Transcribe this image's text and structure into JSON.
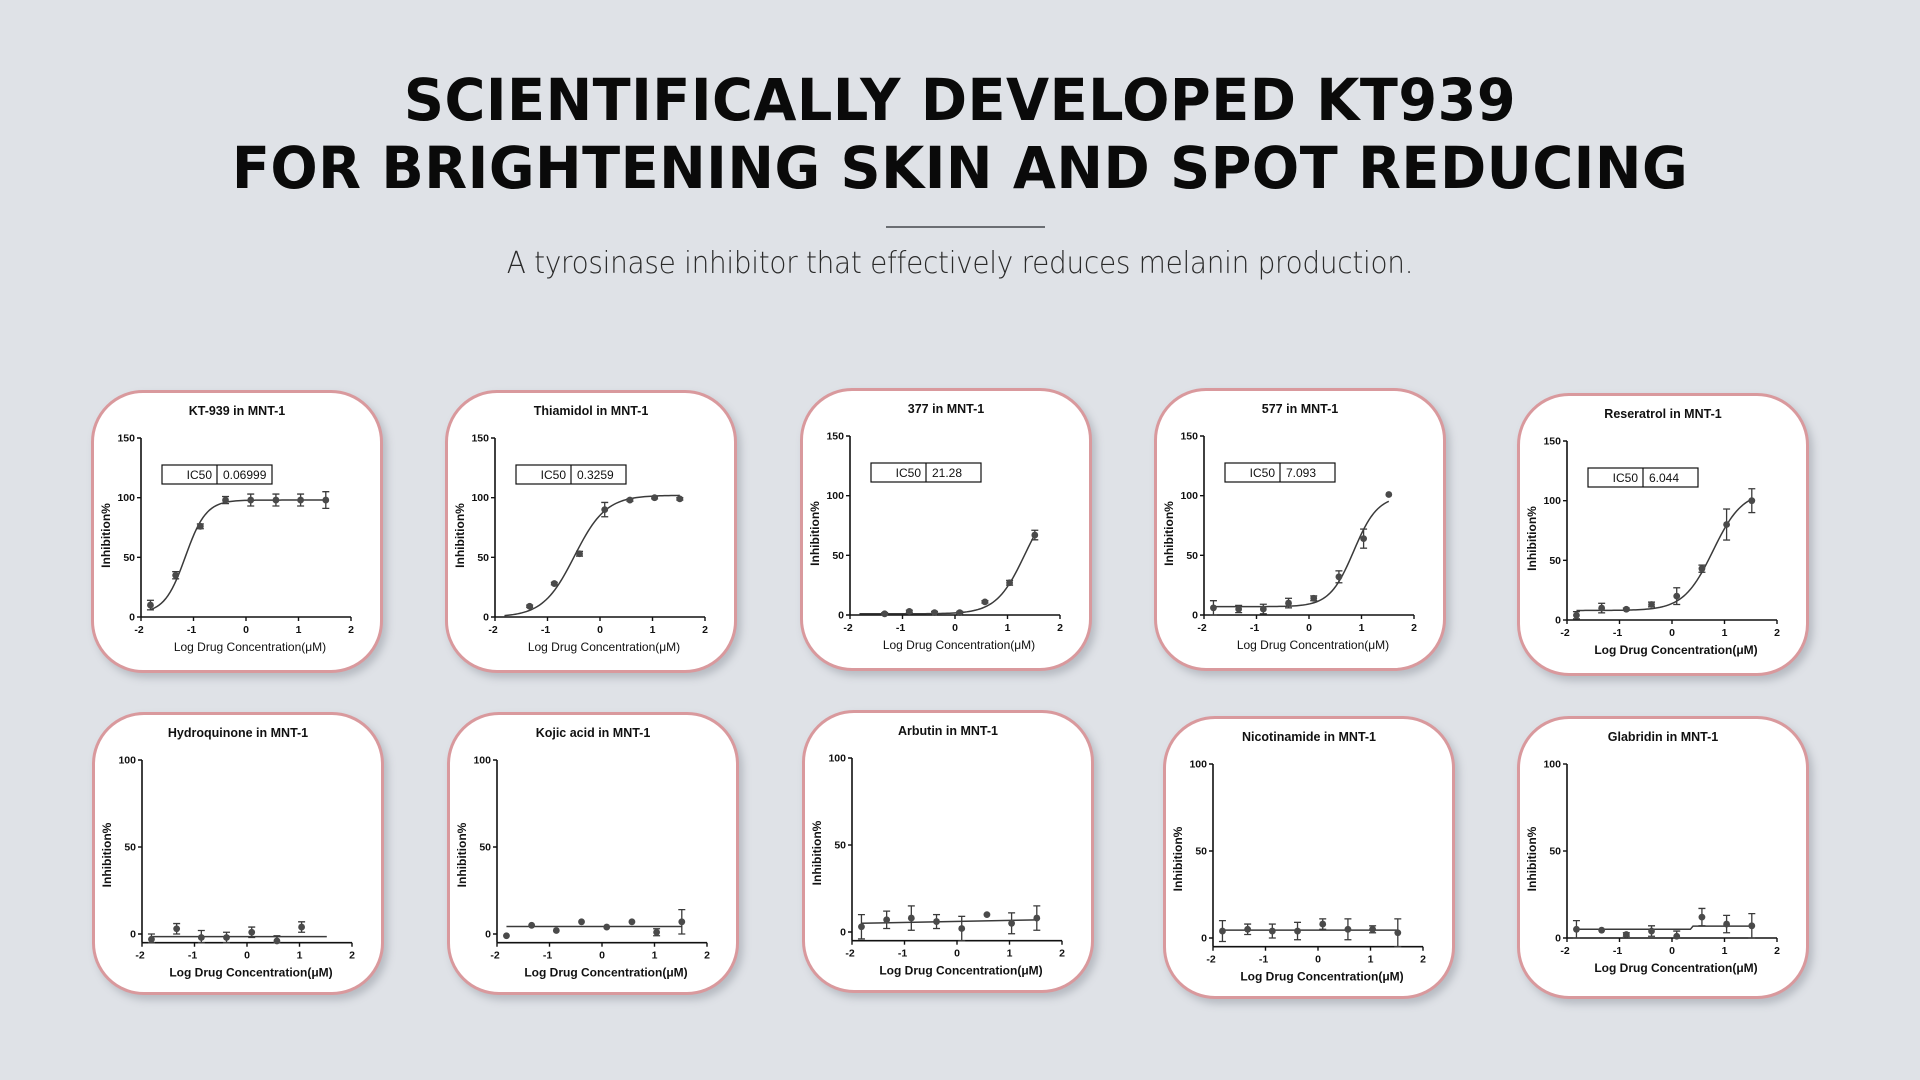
{
  "header": {
    "title_line1": "SCIENTIFICALLY DEVELOPED KT939",
    "title_line2": "FOR BRIGHTENING SKIN AND SPOT REDUCING",
    "subtitle": "A tyrosinase inhibitor that effectively reduces melanin production."
  },
  "colors": {
    "background": "#dfe2e7",
    "card_border": "#d9999d",
    "marker": "#4a4a4a",
    "axis": "#111111"
  },
  "chart_data": [
    {
      "type": "scatter",
      "title": "KT-939 in MNT-1",
      "xlabel": "Log Drug Concentration(μM)",
      "ylabel": "Inhibition%",
      "xlim": [
        -2,
        2
      ],
      "ylim": [
        0,
        150
      ],
      "xticks": [
        "-2",
        "-1",
        "0",
        "1",
        "2"
      ],
      "yticks": [
        "0",
        "50",
        "100",
        "150"
      ],
      "ic50_label": "IC50",
      "ic50_value": "0.06999",
      "x": [
        -1.82,
        -1.34,
        -0.87,
        -0.39,
        0.09,
        0.57,
        1.04,
        1.52
      ],
      "y": [
        10,
        35,
        76,
        98,
        98,
        98,
        98,
        98
      ],
      "err": [
        4,
        3,
        2,
        3,
        5,
        5,
        5,
        7
      ],
      "fit": {
        "bottom": 3,
        "top": 98,
        "logic50": -1.155,
        "hill": 2.2,
        "x_range": [
          -1.82,
          1.52
        ]
      }
    },
    {
      "type": "scatter",
      "title": "Thiamidol in MNT-1",
      "xlabel": "Log Drug Concentration(μM)",
      "ylabel": "Inhibition%",
      "xlim": [
        -2,
        2
      ],
      "ylim": [
        0,
        150
      ],
      "xticks": [
        "-2",
        "-1",
        "0",
        "1",
        "2"
      ],
      "yticks": [
        "0",
        "50",
        "100",
        "150"
      ],
      "ic50_label": "IC50",
      "ic50_value": "0.3259",
      "x": [
        -1.34,
        -0.87,
        -0.39,
        0.09,
        0.57,
        1.04,
        1.52
      ],
      "y": [
        9,
        28,
        53,
        90,
        98,
        100,
        99
      ],
      "err": [
        1,
        1,
        2,
        6,
        1,
        1,
        1
      ],
      "fit": {
        "bottom": 0,
        "top": 102,
        "logic50": -0.487,
        "hill": 1.45,
        "x_range": [
          -1.82,
          1.52
        ]
      }
    },
    {
      "type": "scatter",
      "title": "377 in MNT-1",
      "xlabel": "Log Drug Concentration(μM)",
      "ylabel": "Inhibition%",
      "xlim": [
        -2,
        2
      ],
      "ylim": [
        0,
        150
      ],
      "xticks": [
        "-2",
        "-1",
        "0",
        "1",
        "2"
      ],
      "yticks": [
        "0",
        "50",
        "100",
        "150"
      ],
      "ic50_label": "IC50",
      "ic50_value": "21.28",
      "x": [
        -1.34,
        -0.87,
        -0.39,
        0.09,
        0.57,
        1.04,
        1.52
      ],
      "y": [
        1,
        3,
        2,
        2,
        11,
        27,
        67
      ],
      "err": [
        1,
        1,
        1,
        1,
        1,
        2,
        4
      ],
      "fit": {
        "bottom": 1,
        "top": 100,
        "logic50": 1.328,
        "hill": 1.6,
        "x_range": [
          -1.82,
          1.52
        ]
      }
    },
    {
      "type": "scatter",
      "title": "577 in MNT-1",
      "xlabel": "Log Drug Concentration(μM)",
      "ylabel": "Inhibition%",
      "xlim": [
        -2,
        2
      ],
      "ylim": [
        0,
        150
      ],
      "xticks": [
        "-2",
        "-1",
        "0",
        "1",
        "2"
      ],
      "yticks": [
        "0",
        "50",
        "100",
        "150"
      ],
      "ic50_label": "IC50",
      "ic50_value": "7.093",
      "x": [
        -1.82,
        -1.34,
        -0.87,
        -0.39,
        0.09,
        0.57,
        1.04,
        1.52
      ],
      "y": [
        6,
        5,
        5,
        10,
        14,
        32,
        64,
        101
      ],
      "err": [
        6,
        3,
        4,
        4,
        2,
        5,
        8,
        0
      ],
      "fit": {
        "bottom": 7,
        "top": 100,
        "logic50": 0.851,
        "hill": 1.9,
        "x_range": [
          -1.82,
          1.52
        ]
      }
    },
    {
      "type": "scatter",
      "title": "Reseratrol in MNT-1",
      "xlabel": "Log Drug Concentration(μM)",
      "ylabel": "Inhibition%",
      "xlim": [
        -2,
        2
      ],
      "ylim": [
        0,
        150
      ],
      "xticks": [
        "-2",
        "-1",
        "0",
        "1",
        "2"
      ],
      "yticks": [
        "0",
        "50",
        "100",
        "150"
      ],
      "ic50_label": "IC50",
      "ic50_value": "6.044",
      "x": [
        -1.82,
        -1.34,
        -0.87,
        -0.39,
        0.09,
        0.57,
        1.04,
        1.52
      ],
      "y": [
        4,
        10,
        9,
        13,
        20,
        43,
        80,
        100
      ],
      "err": [
        3,
        4,
        1,
        2,
        7,
        3,
        13,
        10
      ],
      "fit": {
        "bottom": 8,
        "top": 108,
        "logic50": 0.781,
        "hill": 1.55,
        "x_range": [
          -1.82,
          1.52
        ]
      }
    },
    {
      "type": "scatter",
      "title": "Hydroquinone in MNT-1",
      "xlabel": "Log Drug Concentration(μM)",
      "ylabel": "Inhibition%",
      "xlim": [
        -2,
        2
      ],
      "ylim": [
        -5,
        100
      ],
      "xticks": [
        "-2",
        "-1",
        "0",
        "1",
        "2"
      ],
      "yticks": [
        "0",
        "50",
        "100"
      ],
      "x": [
        -1.82,
        -1.34,
        -0.87,
        -0.39,
        0.09,
        0.57,
        1.04
      ],
      "y": [
        -3,
        3,
        -2,
        -2,
        1,
        -4,
        4
      ],
      "err": [
        3,
        3,
        4,
        3,
        3,
        3,
        3
      ],
      "line": [
        [
          -1.82,
          -1.5
        ],
        [
          1.52,
          -1.5
        ]
      ]
    },
    {
      "type": "scatter",
      "title": "Kojic acid in MNT-1",
      "xlabel": "Log Drug Concentration(μM)",
      "ylabel": "Inhibition%",
      "xlim": [
        -2,
        2
      ],
      "ylim": [
        -5,
        100
      ],
      "xticks": [
        "-2",
        "-1",
        "0",
        "1",
        "2"
      ],
      "yticks": [
        "0",
        "50",
        "100"
      ],
      "x": [
        -1.82,
        -1.34,
        -0.87,
        -0.39,
        0.09,
        0.57,
        1.04,
        1.52
      ],
      "y": [
        -1,
        5,
        2,
        7,
        4,
        7,
        1,
        7
      ],
      "err": [
        0,
        0,
        0,
        0,
        0,
        0,
        2,
        7
      ],
      "line": [
        [
          -1.82,
          4.3
        ],
        [
          1.52,
          4.3
        ]
      ]
    },
    {
      "type": "scatter",
      "title": "Arbutin in MNT-1",
      "xlabel": "Log Drug Concentration(μM)",
      "ylabel": "Inhibition%",
      "xlim": [
        -2,
        2
      ],
      "ylim": [
        -5,
        100
      ],
      "xticks": [
        "-2",
        "-1",
        "0",
        "1",
        "2"
      ],
      "yticks": [
        "0",
        "50",
        "100"
      ],
      "x": [
        -1.82,
        -1.34,
        -0.87,
        -0.39,
        0.09,
        0.57,
        1.04,
        1.52
      ],
      "y": [
        3,
        7,
        8,
        6,
        2,
        10,
        5,
        8
      ],
      "err": [
        7,
        5,
        7,
        4,
        7,
        0,
        6,
        7
      ],
      "line": [
        [
          -1.82,
          5
        ],
        [
          1.52,
          7
        ]
      ]
    },
    {
      "type": "scatter",
      "title": "Nicotinamide in MNT-1",
      "xlabel": "Log Drug Concentration(μM)",
      "ylabel": "Inhibition%",
      "xlim": [
        -2,
        2
      ],
      "ylim": [
        -5,
        100
      ],
      "xticks": [
        "-2",
        "-1",
        "0",
        "1",
        "2"
      ],
      "yticks": [
        "0",
        "50",
        "100"
      ],
      "x": [
        -1.82,
        -1.34,
        -0.87,
        -0.39,
        0.09,
        0.57,
        1.04,
        1.52
      ],
      "y": [
        4,
        5,
        4,
        4,
        8,
        5,
        5,
        3
      ],
      "err": [
        6,
        3,
        4,
        5,
        3,
        6,
        2,
        8
      ],
      "line": [
        [
          -1.82,
          4.5
        ],
        [
          1.52,
          4.5
        ]
      ]
    },
    {
      "type": "scatter",
      "title": "Glabridin in MNT-1",
      "xlabel": "Log Drug Concentration(μM)",
      "ylabel": "Inhibition%",
      "xlim": [
        -2,
        2
      ],
      "ylim": [
        0,
        100
      ],
      "xticks": [
        "-2",
        "-1",
        "0",
        "1",
        "2"
      ],
      "yticks": [
        "0",
        "50",
        "100"
      ],
      "x": [
        -1.82,
        -1.34,
        -0.87,
        -0.39,
        0.09,
        0.57,
        1.04,
        1.52
      ],
      "y": [
        5,
        4.5,
        2,
        4,
        1,
        12,
        8,
        7
      ],
      "err": [
        5,
        0,
        1,
        3,
        3,
        5,
        5,
        7
      ],
      "line": [
        [
          -1.82,
          5
        ],
        [
          0.35,
          5
        ],
        [
          0.4,
          6.8
        ],
        [
          1.52,
          6.8
        ]
      ]
    }
  ]
}
